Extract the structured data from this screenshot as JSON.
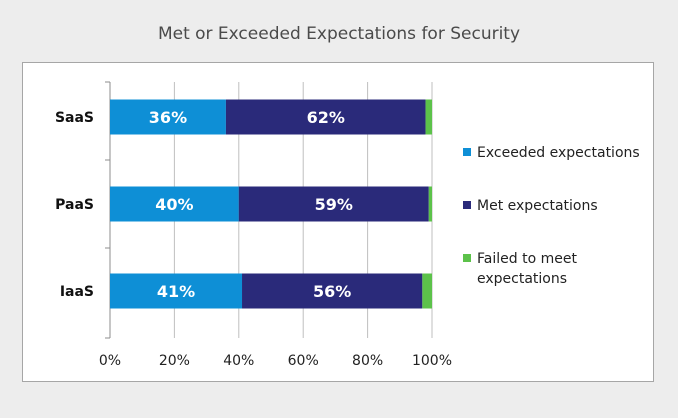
{
  "chart_data": {
    "type": "bar",
    "orientation": "horizontal",
    "stacked": true,
    "title": "Met or Exceeded Expectations for Security",
    "categories": [
      "SaaS",
      "PaaS",
      "IaaS"
    ],
    "series": [
      {
        "name": "Exceeded expectations",
        "values": [
          36,
          40,
          41
        ],
        "labels": [
          "36%",
          "40%",
          "41%"
        ],
        "color": "#0e8fd6"
      },
      {
        "name": "Met expectations",
        "values": [
          62,
          59,
          56
        ],
        "labels": [
          "62%",
          "59%",
          "56%"
        ],
        "color": "#2a2a7a"
      },
      {
        "name": "Failed to meet expectations",
        "values": [
          2,
          1,
          3
        ],
        "labels": [
          "",
          "",
          ""
        ],
        "color": "#5cc24a"
      }
    ],
    "xlim": [
      0,
      100
    ],
    "x_ticks": [
      0,
      20,
      40,
      60,
      80,
      100
    ],
    "x_tick_labels": [
      "0%",
      "20%",
      "40%",
      "60%",
      "80%",
      "100%"
    ],
    "grid": "vertical",
    "legend_position": "right"
  }
}
